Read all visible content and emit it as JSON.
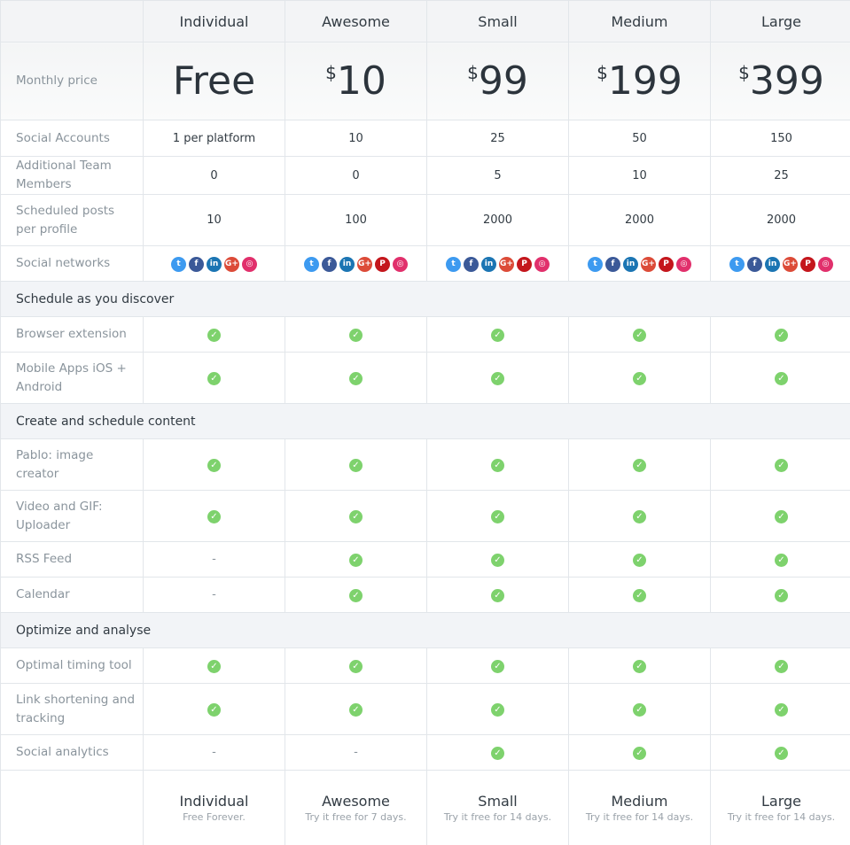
{
  "plans": [
    {
      "name": "Individual",
      "currency": "",
      "price": "Free",
      "footer_note": "Free Forever."
    },
    {
      "name": "Awesome",
      "currency": "$",
      "price": "10",
      "footer_note": "Try it free for 7 days."
    },
    {
      "name": "Small",
      "currency": "$",
      "price": "99",
      "footer_note": "Try it free for 14 days."
    },
    {
      "name": "Medium",
      "currency": "$",
      "price": "199",
      "footer_note": "Try it free for 14 days."
    },
    {
      "name": "Large",
      "currency": "$",
      "price": "399",
      "footer_note": "Try it free for 14 days."
    }
  ],
  "price_label": "Monthly price",
  "networks": {
    "twitter": {
      "color": "#3d9af0",
      "glyph": "t"
    },
    "facebook": {
      "color": "#3b5998",
      "glyph": "f"
    },
    "linkedin": {
      "color": "#1b75b3",
      "glyph": "in"
    },
    "googleplus": {
      "color": "#dc4b38",
      "glyph": "G+"
    },
    "pinterest": {
      "color": "#c4161c",
      "glyph": "P"
    },
    "instagram": {
      "color": "#e1306c",
      "glyph": "◎"
    }
  },
  "rows": [
    {
      "type": "values",
      "label": "Social Accounts",
      "values": [
        "1 per platform",
        "10",
        "25",
        "50",
        "150"
      ],
      "h": 41
    },
    {
      "type": "values",
      "label": "Additional Team Members",
      "values": [
        "0",
        "0",
        "5",
        "10",
        "25"
      ],
      "h": 42
    },
    {
      "type": "values",
      "label": "Scheduled posts per profile",
      "values": [
        "10",
        "100",
        "2000",
        "2000",
        "2000"
      ],
      "h": 58
    },
    {
      "type": "networks",
      "label": "Social networks",
      "values": [
        [
          "twitter",
          "facebook",
          "linkedin",
          "googleplus",
          "instagram"
        ],
        [
          "twitter",
          "facebook",
          "linkedin",
          "googleplus",
          "pinterest",
          "instagram"
        ],
        [
          "twitter",
          "facebook",
          "linkedin",
          "googleplus",
          "pinterest",
          "instagram"
        ],
        [
          "twitter",
          "facebook",
          "linkedin",
          "googleplus",
          "pinterest",
          "instagram"
        ],
        [
          "twitter",
          "facebook",
          "linkedin",
          "googleplus",
          "pinterest",
          "instagram"
        ]
      ],
      "h": 40
    },
    {
      "type": "section",
      "label": "Schedule as you discover"
    },
    {
      "type": "features",
      "label": "Browser extension",
      "values": [
        true,
        true,
        true,
        true,
        true
      ],
      "h": 40
    },
    {
      "type": "features",
      "label": "Mobile Apps iOS + Android",
      "values": [
        true,
        true,
        true,
        true,
        true
      ],
      "h": 58
    },
    {
      "type": "section",
      "label": "Create and schedule content"
    },
    {
      "type": "features",
      "label": "Pablo: image creator",
      "values": [
        true,
        true,
        true,
        true,
        true
      ],
      "h": 58
    },
    {
      "type": "features",
      "label": "Video and GIF: Uploader",
      "values": [
        true,
        true,
        true,
        true,
        true
      ],
      "h": 58
    },
    {
      "type": "features",
      "label": "RSS Feed",
      "values": [
        false,
        true,
        true,
        true,
        true
      ],
      "h": 40
    },
    {
      "type": "features",
      "label": "Calendar",
      "values": [
        false,
        true,
        true,
        true,
        true
      ],
      "h": 40
    },
    {
      "type": "section",
      "label": "Optimize and analyse"
    },
    {
      "type": "features",
      "label": "Optimal timing tool",
      "values": [
        true,
        true,
        true,
        true,
        true
      ],
      "h": 40
    },
    {
      "type": "features",
      "label": "Link shortening and tracking",
      "values": [
        true,
        true,
        true,
        true,
        true
      ],
      "h": 58
    },
    {
      "type": "features",
      "label": "Social analytics",
      "values": [
        false,
        false,
        true,
        true,
        true
      ],
      "h": 40
    }
  ],
  "symbols": {
    "check": "✓",
    "dash": "-"
  },
  "colors": {
    "check": "#7ed26d",
    "section_bg": "#f2f4f7"
  }
}
